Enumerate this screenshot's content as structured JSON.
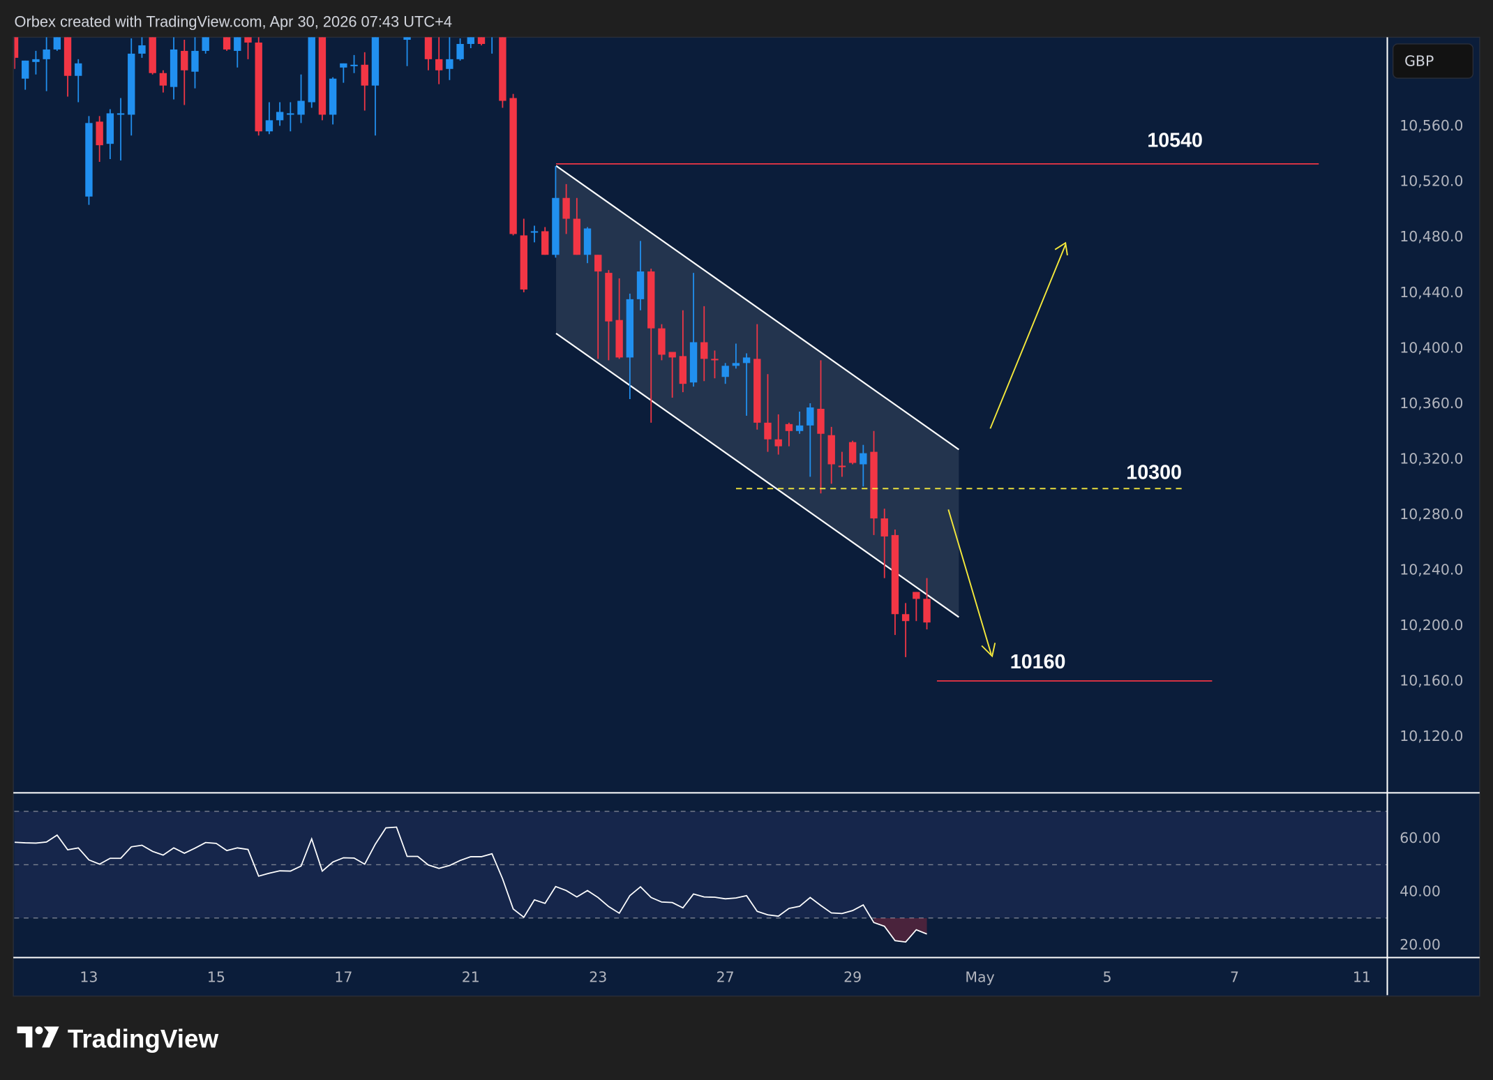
{
  "header": {
    "attribution": "Orbex created with TradingView.com, Apr 30, 2026 07:43 UTC+4"
  },
  "footer": {
    "logo_text": "TradingView"
  },
  "colors": {
    "background": "#0b1d3a",
    "up": "#2190f0",
    "down": "#f23645",
    "annotation_line": "#f23645",
    "target": "#f5e93b",
    "channel_fill": "rgba(255,255,255,0.10)",
    "rsi_band": "#16264b"
  },
  "price_axis": {
    "currency": "GBP",
    "ticks": [
      "10,560.0",
      "10,520.0",
      "10,480.0",
      "10,440.0",
      "10,400.0",
      "10,360.0",
      "10,320.0",
      "10,280.0",
      "10,240.0",
      "10,200.0",
      "10,160.0",
      "10,120.0"
    ],
    "tick_values": [
      10560,
      10520,
      10480,
      10440,
      10400,
      10360,
      10320,
      10280,
      10240,
      10200,
      10160,
      10120
    ]
  },
  "rsi_axis": {
    "ticks": [
      "60.00",
      "40.00",
      "20.00"
    ],
    "tick_values": [
      60,
      40,
      20
    ],
    "bands": [
      70,
      50,
      30
    ]
  },
  "time_axis": {
    "ticks": [
      "13",
      "15",
      "17",
      "21",
      "23",
      "27",
      "29",
      "May",
      "5",
      "7",
      "11"
    ]
  },
  "annotations": {
    "resistance": "10540",
    "pivot": "10300",
    "support": "10160"
  },
  "chart_data": {
    "type": "candlestick",
    "ylim": [
      10080,
      10624
    ],
    "grid": false,
    "ohlc": [
      [
        10628,
        10640,
        10601,
        10609
      ],
      [
        10594,
        10607,
        10586,
        10607
      ],
      [
        10606,
        10614,
        10597,
        10608
      ],
      [
        10608,
        10630,
        10585,
        10615
      ],
      [
        10615,
        10640,
        10614,
        10630
      ],
      [
        10632,
        10640,
        10581,
        10596
      ],
      [
        10596,
        10608,
        10577,
        10605
      ],
      [
        10509,
        10567,
        10503,
        10562
      ],
      [
        10563,
        10567,
        10534,
        10546
      ],
      [
        10547,
        10572,
        10536,
        10569
      ],
      [
        10569,
        10580,
        10535,
        10569
      ],
      [
        10568,
        10623,
        10553,
        10612
      ],
      [
        10612,
        10625,
        10609,
        10618
      ],
      [
        10630,
        10640,
        10597,
        10598
      ],
      [
        10598,
        10600,
        10584,
        10589
      ],
      [
        10588,
        10630,
        10579,
        10615
      ],
      [
        10614,
        10622,
        10575,
        10600
      ],
      [
        10599,
        10630,
        10587,
        10614
      ],
      [
        10614,
        10640,
        10612,
        10632
      ],
      [
        10640,
        10655,
        10633,
        10650
      ],
      [
        10640,
        10650,
        10614,
        10615
      ],
      [
        10614,
        10645,
        10602,
        10635
      ],
      [
        10645,
        10650,
        10608,
        10620
      ],
      [
        10620,
        10630,
        10553,
        10556
      ],
      [
        10556,
        10577,
        10554,
        10564
      ],
      [
        10564,
        10577,
        10560,
        10570
      ],
      [
        10569,
        10577,
        10556,
        10569
      ],
      [
        10568,
        10597,
        10562,
        10578
      ],
      [
        10577,
        10640,
        10573,
        10630
      ],
      [
        10630,
        10635,
        10564,
        10568
      ],
      [
        10568,
        10595,
        10561,
        10594
      ],
      [
        10602,
        10605,
        10591,
        10605
      ],
      [
        10604,
        10611,
        10598,
        10604
      ],
      [
        10604,
        10613,
        10571,
        10589
      ],
      [
        10589,
        10640,
        10553,
        10630
      ],
      [
        10630,
        10648,
        10625,
        10640
      ],
      [
        10640,
        10650,
        10628,
        10636
      ],
      [
        10622,
        10640,
        10603,
        10630
      ],
      [
        10632,
        10650,
        10626,
        10640
      ],
      [
        10635,
        10645,
        10600,
        10608
      ],
      [
        10608,
        10630,
        10590,
        10600
      ],
      [
        10601,
        10630,
        10593,
        10608
      ],
      [
        10608,
        10623,
        10607,
        10619
      ],
      [
        10619,
        10640,
        10616,
        10630
      ],
      [
        10625,
        10635,
        10618,
        10619
      ],
      [
        10625,
        10645,
        10612,
        10635
      ],
      [
        10640,
        10648,
        10573,
        10578
      ],
      [
        10580,
        10583,
        10481,
        10482
      ],
      [
        10481,
        10493,
        10440,
        10442
      ],
      [
        10484,
        10488,
        10476,
        10484
      ],
      [
        10484,
        10487,
        10467,
        10467
      ],
      [
        10467,
        10531,
        10465,
        10508
      ],
      [
        10508,
        10518,
        10482,
        10493
      ],
      [
        10493,
        10508,
        10467,
        10467
      ],
      [
        10467,
        10487,
        10461,
        10486
      ],
      [
        10467,
        10467,
        10392,
        10455
      ],
      [
        10454,
        10456,
        10391,
        10419
      ],
      [
        10420,
        10450,
        10392,
        10393
      ],
      [
        10393,
        10439,
        10363,
        10435
      ],
      [
        10435,
        10477,
        10427,
        10455
      ],
      [
        10455,
        10457,
        10346,
        10414
      ],
      [
        10414,
        10417,
        10391,
        10395
      ],
      [
        10397,
        10397,
        10364,
        10393
      ],
      [
        10394,
        10427,
        10368,
        10374
      ],
      [
        10375,
        10454,
        10372,
        10404
      ],
      [
        10404,
        10430,
        10376,
        10392
      ],
      [
        10392,
        10398,
        10378,
        10391
      ],
      [
        10379,
        10389,
        10374,
        10387
      ],
      [
        10387,
        10403,
        10385,
        10389
      ],
      [
        10389,
        10396,
        10351,
        10393
      ],
      [
        10392,
        10417,
        10341,
        10346
      ],
      [
        10346,
        10381,
        10325,
        10334
      ],
      [
        10334,
        10352,
        10323,
        10329
      ],
      [
        10345,
        10346,
        10329,
        10340
      ],
      [
        10340,
        10354,
        10338,
        10344
      ],
      [
        10344,
        10360,
        10307,
        10357
      ],
      [
        10356,
        10391,
        10295,
        10338
      ],
      [
        10337,
        10343,
        10302,
        10316
      ],
      [
        10315,
        10325,
        10307,
        10314
      ],
      [
        10332,
        10333,
        10316,
        10317
      ],
      [
        10316,
        10330,
        10300,
        10324
      ],
      [
        10325,
        10340,
        10265,
        10277
      ],
      [
        10277,
        10284,
        10234,
        10264
      ],
      [
        10265,
        10269,
        10193,
        10208
      ],
      [
        10208,
        10216,
        10177,
        10203
      ],
      [
        10224,
        10224,
        10203,
        10219
      ],
      [
        10219,
        10234,
        10197,
        10202
      ]
    ],
    "rsi": [
      58.4,
      58.2,
      58.1,
      58.5,
      61.1,
      55.6,
      56.3,
      51.8,
      50.2,
      52.4,
      52.4,
      56.7,
      57.3,
      55.0,
      53.6,
      56.3,
      54.3,
      56.2,
      58.3,
      58.0,
      55.3,
      56.3,
      55.7,
      45.7,
      46.8,
      47.7,
      47.6,
      49.5,
      59.7,
      47.6,
      51.0,
      52.6,
      52.5,
      50.2,
      57.7,
      63.8,
      64.1,
      53.1,
      53.1,
      49.9,
      48.6,
      49.7,
      51.6,
      53.0,
      53.0,
      54.1,
      44.7,
      33.4,
      30.3,
      36.8,
      35.5,
      41.8,
      40.3,
      37.9,
      40.3,
      37.7,
      34.3,
      31.8,
      38.4,
      41.7,
      37.7,
      36.0,
      35.8,
      33.8,
      39.0,
      37.9,
      37.8,
      37.2,
      37.5,
      38.4,
      32.5,
      31.2,
      30.7,
      33.6,
      34.4,
      37.7,
      34.7,
      31.9,
      31.7,
      32.8,
      34.9,
      28.3,
      26.9,
      21.5,
      21.0,
      25.6,
      24.0
    ]
  }
}
